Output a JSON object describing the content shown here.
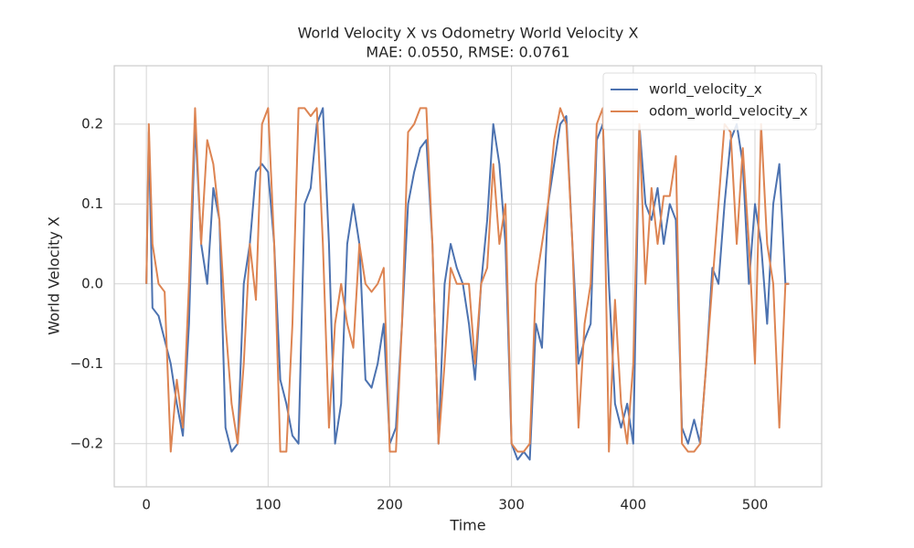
{
  "chart_data": {
    "type": "line",
    "title": "World Velocity X vs Odometry World Velocity X",
    "subtitle": "MAE: 0.0550, RMSE: 0.0761",
    "x_label": "Time",
    "y_label": "World Velocity X",
    "xlim": [
      -26.4,
      554.8
    ],
    "ylim": [
      -0.254,
      0.273
    ],
    "xticks": [
      0,
      100,
      200,
      300,
      400,
      500
    ],
    "yticks": [
      {
        "value": -0.2,
        "label": "−0.2"
      },
      {
        "value": -0.1,
        "label": "−0.1"
      },
      {
        "value": 0,
        "label": "0.0"
      },
      0.1,
      0.2
    ],
    "grid": true,
    "legend": "upper right",
    "x": [
      0,
      2,
      5,
      10,
      15,
      20,
      25,
      30,
      35,
      40,
      45,
      50,
      55,
      60,
      65,
      70,
      75,
      80,
      85,
      90,
      95,
      100,
      105,
      110,
      115,
      120,
      125,
      130,
      135,
      140,
      145,
      150,
      155,
      160,
      165,
      170,
      175,
      180,
      185,
      190,
      195,
      200,
      205,
      210,
      215,
      220,
      225,
      230,
      235,
      240,
      245,
      250,
      255,
      260,
      265,
      270,
      275,
      280,
      285,
      290,
      295,
      300,
      305,
      310,
      315,
      320,
      325,
      330,
      335,
      340,
      345,
      350,
      355,
      360,
      365,
      370,
      375,
      380,
      385,
      390,
      395,
      400,
      405,
      410,
      415,
      420,
      425,
      430,
      435,
      440,
      445,
      450,
      455,
      460,
      465,
      470,
      475,
      480,
      485,
      490,
      495,
      500,
      505,
      510,
      515,
      520,
      525,
      528
    ],
    "series": [
      {
        "name": "world_velocity_x",
        "color": "#4c72b0",
        "values": [
          0.0,
          0.19,
          -0.03,
          -0.04,
          -0.07,
          -0.1,
          -0.15,
          -0.19,
          -0.05,
          0.2,
          0.05,
          0.0,
          0.12,
          0.08,
          -0.18,
          -0.21,
          -0.2,
          0.0,
          0.05,
          0.14,
          0.15,
          0.14,
          0.05,
          -0.12,
          -0.15,
          -0.19,
          -0.2,
          0.1,
          0.12,
          0.2,
          0.22,
          0.05,
          -0.2,
          -0.15,
          0.05,
          0.1,
          0.05,
          -0.12,
          -0.13,
          -0.1,
          -0.05,
          -0.2,
          -0.18,
          -0.05,
          0.1,
          0.14,
          0.17,
          0.18,
          0.05,
          -0.2,
          0.0,
          0.05,
          0.02,
          0.0,
          -0.05,
          -0.12,
          0.0,
          0.08,
          0.2,
          0.15,
          0.05,
          -0.2,
          -0.22,
          -0.21,
          -0.22,
          -0.05,
          -0.08,
          0.1,
          0.15,
          0.2,
          0.21,
          0.05,
          -0.1,
          -0.07,
          -0.05,
          0.18,
          0.2,
          0.0,
          -0.15,
          -0.18,
          -0.15,
          -0.2,
          0.2,
          0.1,
          0.08,
          0.12,
          0.05,
          0.1,
          0.08,
          -0.18,
          -0.2,
          -0.17,
          -0.2,
          -0.1,
          0.02,
          0.0,
          0.1,
          0.18,
          0.2,
          0.15,
          0.0,
          0.1,
          0.05,
          -0.05,
          0.1,
          0.15,
          0.0,
          0.0
        ]
      },
      {
        "name": "odom_world_velocity_x",
        "color": "#dd8452",
        "values": [
          0.0,
          0.2,
          0.05,
          0.0,
          -0.01,
          -0.21,
          -0.12,
          -0.18,
          0.0,
          0.22,
          0.05,
          0.18,
          0.15,
          0.08,
          -0.05,
          -0.15,
          -0.2,
          -0.1,
          0.05,
          -0.02,
          0.2,
          0.22,
          0.05,
          -0.21,
          -0.21,
          -0.05,
          0.22,
          0.22,
          0.21,
          0.22,
          0.05,
          -0.18,
          -0.05,
          0.0,
          -0.05,
          -0.08,
          0.05,
          0.0,
          -0.01,
          0.0,
          0.02,
          -0.21,
          -0.21,
          -0.05,
          0.19,
          0.2,
          0.22,
          0.22,
          0.05,
          -0.2,
          -0.1,
          0.02,
          0.0,
          0.0,
          0.0,
          -0.1,
          0.0,
          0.02,
          0.15,
          0.05,
          0.1,
          -0.2,
          -0.21,
          -0.21,
          -0.2,
          0.0,
          0.05,
          0.1,
          0.18,
          0.22,
          0.2,
          0.05,
          -0.18,
          -0.05,
          0.0,
          0.2,
          0.22,
          -0.21,
          -0.02,
          -0.15,
          -0.2,
          -0.1,
          0.2,
          0.0,
          0.12,
          0.05,
          0.11,
          0.11,
          0.16,
          -0.2,
          -0.21,
          -0.21,
          -0.2,
          -0.1,
          0.0,
          0.1,
          0.2,
          0.19,
          0.05,
          0.17,
          0.05,
          -0.1,
          0.2,
          0.05,
          0.0,
          -0.18,
          0.0,
          0.0
        ]
      }
    ]
  }
}
